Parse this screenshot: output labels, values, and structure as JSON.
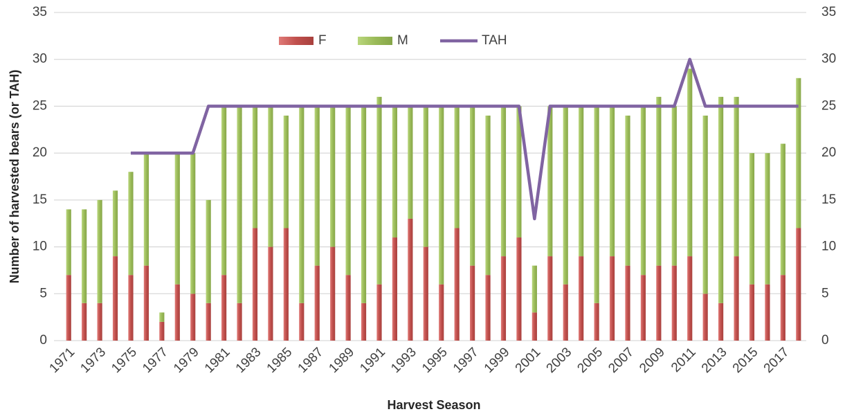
{
  "chart_data": {
    "type": "bar",
    "stacked": true,
    "x_label": "Harvest Season",
    "y_label": "Number of harvested bears (or TAH)",
    "categories": [
      "1971",
      null,
      "1973",
      null,
      "1975",
      null,
      "1977",
      null,
      "1979",
      null,
      "1981",
      null,
      "1983",
      null,
      "1985",
      null,
      "1987",
      null,
      "1989",
      null,
      "1991",
      null,
      "1993",
      null,
      "1995",
      null,
      "1997",
      null,
      "1999",
      null,
      "2001",
      null,
      "2003",
      null,
      "2005",
      null,
      "2007",
      null,
      "2009",
      null,
      "2011",
      null,
      "2013",
      null,
      "2015",
      null,
      "2017",
      null
    ],
    "series": [
      {
        "name": "F",
        "type": "bar",
        "color": "#c0504d",
        "values": [
          7,
          4,
          4,
          9,
          7,
          8,
          2,
          6,
          5,
          4,
          7,
          4,
          12,
          10,
          12,
          4,
          8,
          10,
          7,
          4,
          6,
          11,
          13,
          10,
          6,
          12,
          8,
          7,
          9,
          11,
          3,
          9,
          6,
          9,
          4,
          9,
          8,
          7,
          8,
          8,
          9,
          5,
          4,
          9,
          6,
          6,
          7,
          12
        ]
      },
      {
        "name": "M",
        "type": "bar",
        "color": "#9bbb59",
        "values": [
          7,
          10,
          11,
          7,
          11,
          12,
          1,
          14,
          15,
          11,
          18,
          21,
          13,
          15,
          12,
          21,
          17,
          15,
          18,
          21,
          20,
          14,
          12,
          15,
          19,
          13,
          17,
          17,
          16,
          14,
          5,
          16,
          19,
          16,
          21,
          16,
          16,
          18,
          18,
          17,
          20,
          19,
          22,
          17,
          14,
          14,
          14,
          16
        ]
      },
      {
        "name": "TAH",
        "type": "line",
        "color": "#8064a2",
        "values": [
          null,
          null,
          null,
          null,
          20,
          20,
          20,
          20,
          20,
          25,
          25,
          25,
          25,
          25,
          25,
          25,
          25,
          25,
          25,
          25,
          25,
          25,
          25,
          25,
          25,
          25,
          25,
          25,
          25,
          25,
          13,
          25,
          25,
          25,
          25,
          25,
          25,
          25,
          25,
          25,
          30,
          25,
          25,
          25,
          25,
          25,
          25,
          25
        ]
      }
    ],
    "ylim": [
      0,
      35
    ],
    "yticks": [
      0,
      5,
      10,
      15,
      20,
      25,
      30,
      35
    ],
    "y2lim": [
      0,
      35
    ],
    "y2ticks": [
      0,
      5,
      10,
      15,
      20,
      25,
      30,
      35
    ],
    "grid": true,
    "legend": "top"
  }
}
